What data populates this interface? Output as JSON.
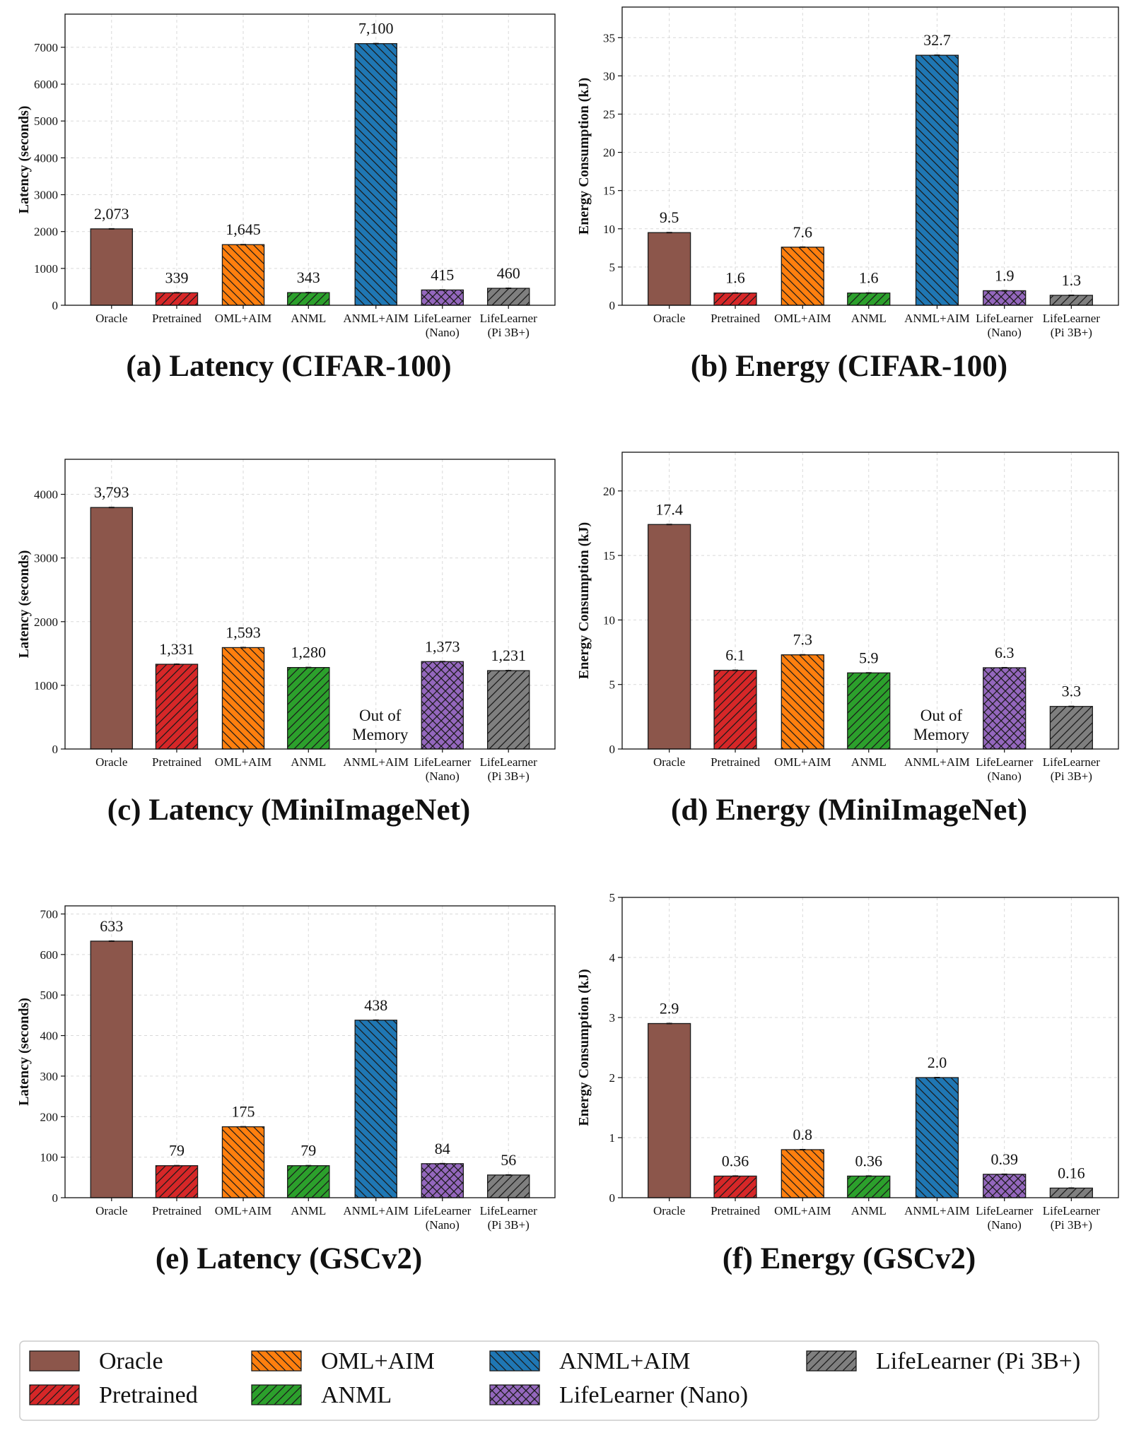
{
  "categories": [
    "Oracle",
    "Pretrained",
    "OML+AIM",
    "ANML",
    "ANML+AIM",
    "LifeLearner\n(Nano)",
    "LifeLearner\n(Pi 3B+)"
  ],
  "legend": {
    "entries": [
      "Oracle",
      "Pretrained",
      "OML+AIM",
      "ANML",
      "ANML+AIM",
      "LifeLearner (Nano)",
      "LifeLearner (Pi 3B+)"
    ]
  },
  "series_colors": {
    "Oracle": "#8c564b",
    "Pretrained": "#d62728",
    "OML+AIM": "#ff7f0e",
    "ANML": "#2ca02c",
    "ANML+AIM": "#1f77b4",
    "LifeLearner (Nano)": "#9467bd",
    "LifeLearner (Pi 3B+)": "#7f7f7f"
  },
  "hatch": {
    "Oracle": "none",
    "Pretrained": "slash",
    "OML+AIM": "backslash",
    "ANML": "slash",
    "ANML+AIM": "backslash",
    "LifeLearner (Nano)": "cross",
    "LifeLearner (Pi 3B+)": "slash"
  },
  "chart_data": [
    {
      "type": "bar",
      "caption": "(a) Latency (CIFAR-100)",
      "ylabel": "Latency (seconds)",
      "ylim": [
        0,
        7900
      ],
      "yticks": [
        0,
        1000,
        2000,
        3000,
        4000,
        5000,
        6000,
        7000
      ],
      "values": [
        2073,
        339,
        1645,
        343,
        7100,
        415,
        460
      ],
      "labels": [
        "2,073",
        "339",
        "1,645",
        "343",
        "7,100",
        "415",
        "460"
      ],
      "oom": null,
      "grid": true
    },
    {
      "type": "bar",
      "caption": "(b) Energy (CIFAR-100)",
      "ylabel": "Energy Consumption (kJ)",
      "ylim": [
        0,
        39
      ],
      "yticks": [
        0,
        5,
        10,
        15,
        20,
        25,
        30,
        35
      ],
      "values": [
        9.5,
        1.6,
        7.6,
        1.6,
        32.7,
        1.9,
        1.3
      ],
      "labels": [
        "9.5",
        "1.6",
        "7.6",
        "1.6",
        "32.7",
        "1.9",
        "1.3"
      ],
      "oom": null,
      "grid": true
    },
    {
      "type": "bar",
      "caption": "(c) Latency (MiniImageNet)",
      "ylabel": "Latency (seconds)",
      "ylim": [
        0,
        4550
      ],
      "yticks": [
        0,
        1000,
        2000,
        3000,
        4000
      ],
      "values": [
        3793,
        1331,
        1593,
        1280,
        null,
        1373,
        1231
      ],
      "labels": [
        "3,793",
        "1,331",
        "1,593",
        "1,280",
        "",
        "1,373",
        "1,231"
      ],
      "oom": {
        "index": 4,
        "text": [
          "Out of",
          "Memory"
        ]
      },
      "grid": true
    },
    {
      "type": "bar",
      "caption": "(d) Energy (MiniImageNet)",
      "ylabel": "Energy Consumption (kJ)",
      "ylim": [
        0,
        23
      ],
      "yticks": [
        0,
        5,
        10,
        15,
        20
      ],
      "values": [
        17.4,
        6.1,
        7.3,
        5.9,
        null,
        6.3,
        3.3
      ],
      "labels": [
        "17.4",
        "6.1",
        "7.3",
        "5.9",
        "",
        "6.3",
        "3.3"
      ],
      "oom": {
        "index": 4,
        "text": [
          "Out of",
          "Memory"
        ]
      },
      "grid": true
    },
    {
      "type": "bar",
      "caption": "(e) Latency (GSCv2)",
      "ylabel": "Latency (seconds)",
      "ylim": [
        0,
        720
      ],
      "yticks": [
        0,
        100,
        200,
        300,
        400,
        500,
        600,
        700
      ],
      "values": [
        633,
        79,
        175,
        79,
        438,
        84,
        56
      ],
      "labels": [
        "633",
        "79",
        "175",
        "79",
        "438",
        "84",
        "56"
      ],
      "oom": null,
      "grid": true
    },
    {
      "type": "bar",
      "caption": "(f) Energy (GSCv2)",
      "ylabel": "Energy Consumption (kJ)",
      "ylim": [
        0,
        5
      ],
      "yticks": [
        0,
        1,
        2,
        3,
        4,
        5
      ],
      "values": [
        2.9,
        0.36,
        0.8,
        0.36,
        2.0,
        0.39,
        0.16
      ],
      "labels": [
        "2.9",
        "0.36",
        "0.8",
        "0.36",
        "2.0",
        "0.39",
        "0.16"
      ],
      "oom": null,
      "grid": true
    }
  ]
}
